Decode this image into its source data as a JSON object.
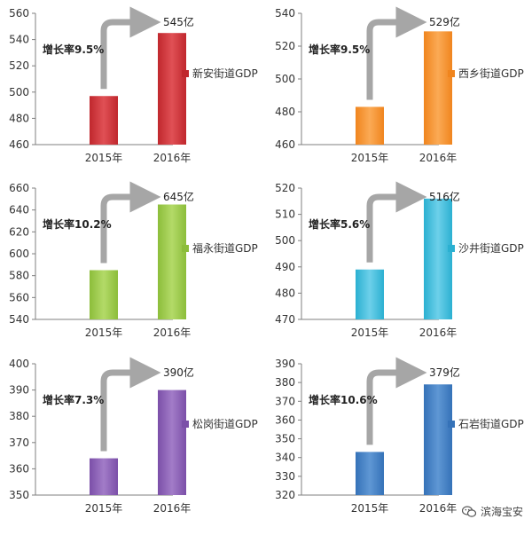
{
  "chart_data": [
    {
      "type": "bar",
      "categories": [
        "2015年",
        "2016年"
      ],
      "values": [
        497,
        545
      ],
      "ylim": [
        460,
        560
      ],
      "yticks": [
        460,
        480,
        500,
        520,
        540,
        560
      ],
      "growth_label": "增长率9.5%",
      "value_label": "545亿",
      "legend": "新安街道GDP",
      "color": "#c0272d",
      "color_light": "#e05055"
    },
    {
      "type": "bar",
      "categories": [
        "2015年",
        "2016年"
      ],
      "values": [
        483,
        529
      ],
      "ylim": [
        460,
        540
      ],
      "yticks": [
        460,
        480,
        500,
        520,
        540
      ],
      "growth_label": "增长率9.5%",
      "value_label": "529亿",
      "legend": "西乡街道GDP",
      "color": "#f0851e",
      "color_light": "#fbaa55"
    },
    {
      "type": "bar",
      "categories": [
        "2015年",
        "2016年"
      ],
      "values": [
        585,
        645
      ],
      "ylim": [
        540,
        660
      ],
      "yticks": [
        540,
        560,
        580,
        600,
        620,
        640,
        660
      ],
      "growth_label": "增长率10.2%",
      "value_label": "645亿",
      "legend": "福永街道GDP",
      "color": "#8cbd3a",
      "color_light": "#b3da68"
    },
    {
      "type": "bar",
      "categories": [
        "2015年",
        "2016年"
      ],
      "values": [
        489,
        516
      ],
      "ylim": [
        470,
        520
      ],
      "yticks": [
        470,
        480,
        490,
        500,
        510,
        520
      ],
      "growth_label": "增长率5.6%",
      "value_label": "516亿",
      "legend": "沙井街道GDP",
      "color": "#2bb0d1",
      "color_light": "#6dd0ea"
    },
    {
      "type": "bar",
      "categories": [
        "2015年",
        "2016年"
      ],
      "values": [
        364,
        390
      ],
      "ylim": [
        350,
        400
      ],
      "yticks": [
        350,
        360,
        370,
        380,
        390,
        400
      ],
      "growth_label": "增长率7.3%",
      "value_label": "390亿",
      "legend": "松岗街道GDP",
      "color": "#7b4fa8",
      "color_light": "#a27cc8"
    },
    {
      "type": "bar",
      "categories": [
        "2015年",
        "2016年"
      ],
      "values": [
        343,
        379
      ],
      "ylim": [
        320,
        390
      ],
      "yticks": [
        320,
        330,
        340,
        350,
        360,
        370,
        380,
        390
      ],
      "growth_label": "增长率10.6%",
      "value_label": "379亿",
      "legend": "石岩街道GDP",
      "color": "#3572b8",
      "color_light": "#5f97d4"
    }
  ],
  "watermark": {
    "text": "滨海宝安",
    "icon": "wechat-icon"
  }
}
